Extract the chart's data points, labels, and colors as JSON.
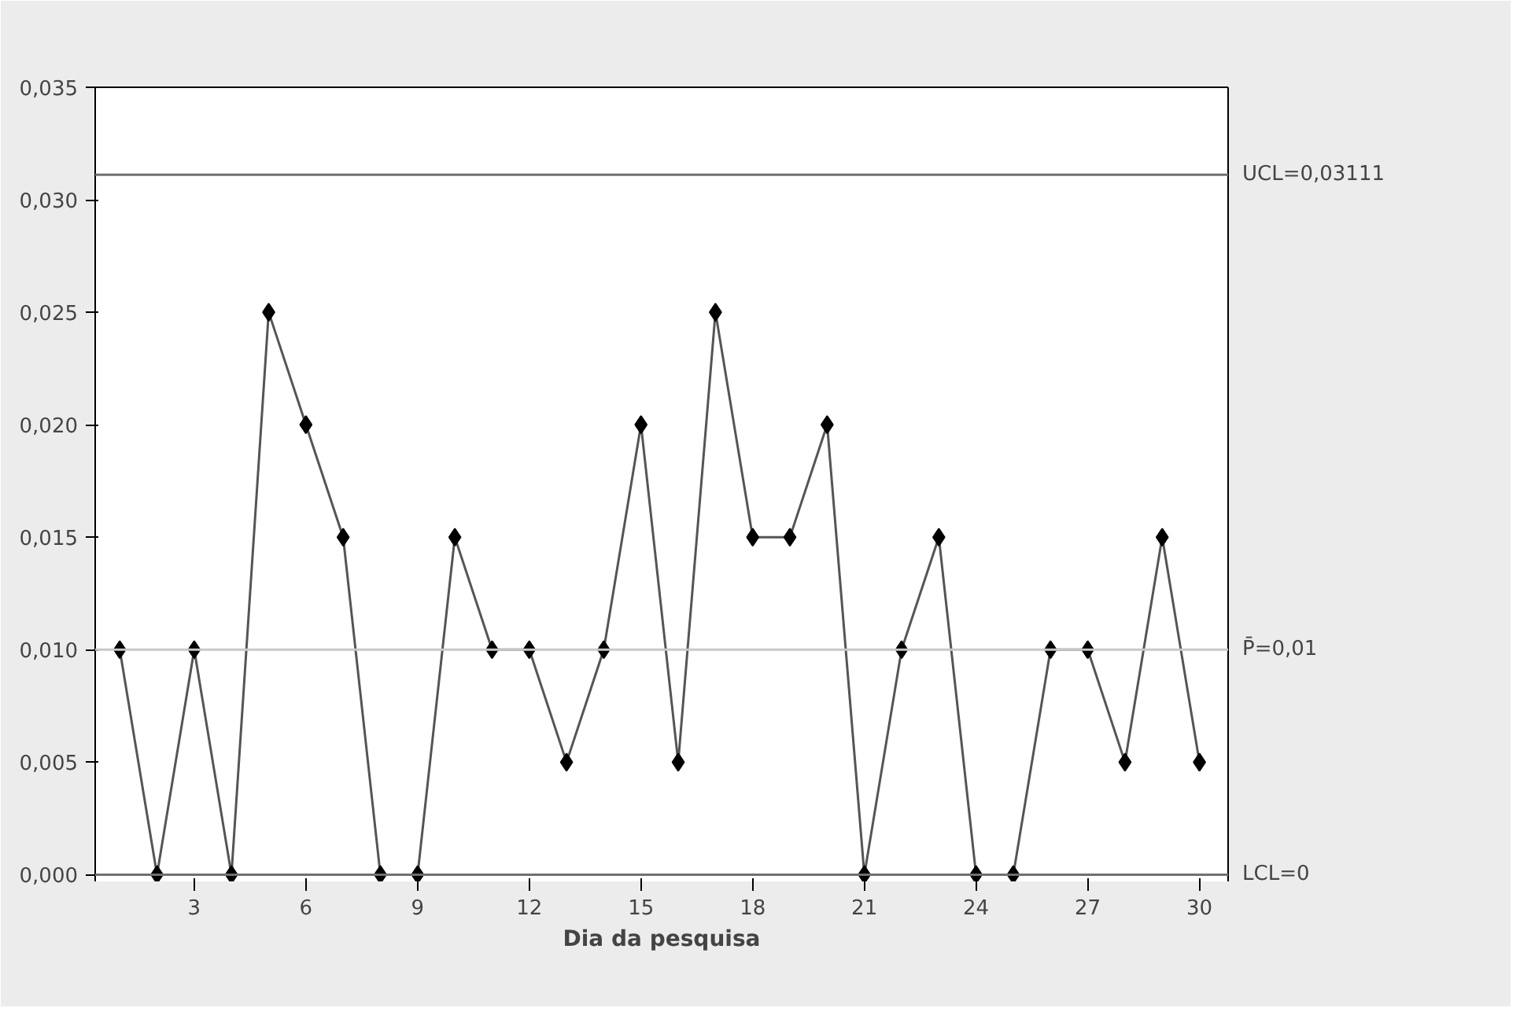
{
  "chart_data": {
    "type": "line",
    "xlabel": "Dia da pesquisa",
    "x": [
      1,
      2,
      3,
      4,
      5,
      6,
      7,
      8,
      9,
      10,
      11,
      12,
      13,
      14,
      15,
      16,
      17,
      18,
      19,
      20,
      21,
      22,
      23,
      24,
      25,
      26,
      27,
      28,
      29,
      30
    ],
    "series": [
      {
        "color": "#555555",
        "values": [
          0.01,
          0,
          0.01,
          0,
          0.025,
          0.02,
          0.015,
          0,
          0,
          0.015,
          0.01,
          0.01,
          0.005,
          0.01,
          0.02,
          0.005,
          0.025,
          0.015,
          0.015,
          0.02,
          0,
          0.01,
          0.015,
          0,
          0,
          0.01,
          0.01,
          0.005,
          0.015,
          0.005
        ]
      }
    ],
    "marker": "diamond",
    "line_style": "solid",
    "grid": false,
    "xlim": [
      0.34,
      30.77
    ],
    "ylim": [
      -0.0003,
      0.035
    ],
    "xticks": [
      3,
      6,
      9,
      12,
      15,
      18,
      21,
      24,
      27,
      30
    ],
    "yticks": [
      {
        "value": 0,
        "label": "0,000"
      },
      {
        "value": 0.005,
        "label": "0,005"
      },
      {
        "value": 0.01,
        "label": "0,010"
      },
      {
        "value": 0.015,
        "label": "0,015"
      },
      {
        "value": 0.02,
        "label": "0,020"
      },
      {
        "value": 0.025,
        "label": "0,025"
      },
      {
        "value": 0.03,
        "label": "0,030"
      },
      {
        "value": 0.035,
        "label": "0,035"
      }
    ],
    "ref_lines": [
      {
        "axis": "y",
        "value": 0.03111,
        "label": "UCL=0,03111",
        "color": "#707070"
      },
      {
        "axis": "y",
        "value": 0.01,
        "label": "P̄=0,01",
        "color": "#c8c8c8"
      },
      {
        "axis": "y",
        "value": 0,
        "label": "LCL=0",
        "color": "#707070"
      }
    ]
  }
}
